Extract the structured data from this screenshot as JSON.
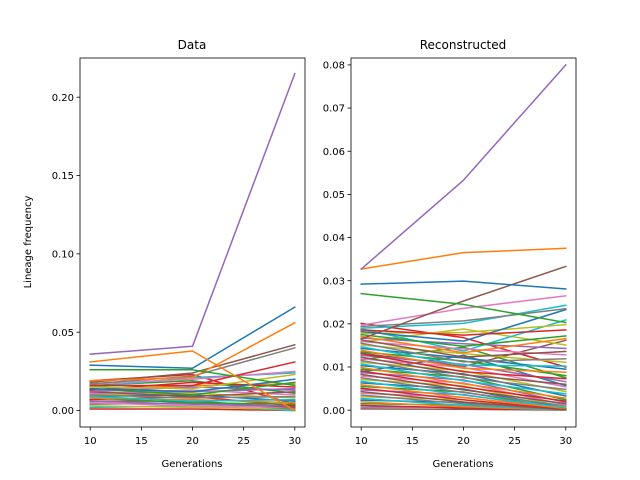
{
  "figure": {
    "ylabel": "Lineage frequency"
  },
  "chart_data": [
    {
      "type": "line",
      "title": "Data",
      "xlabel": "Generations",
      "ylabel": "Lineage frequency",
      "x": [
        10,
        20,
        30
      ],
      "xlim": [
        9,
        31
      ],
      "ylim": [
        -0.0105,
        0.225
      ],
      "xticks": [
        10,
        15,
        20,
        25,
        30
      ],
      "xtick_labels": [
        "10",
        "15",
        "20",
        "25",
        "30"
      ],
      "yticks": [
        0,
        0.05,
        0.1,
        0.15,
        0.2
      ],
      "ytick_labels": [
        "0.00",
        "0.05",
        "0.10",
        "0.15",
        "0.20"
      ],
      "grid": false,
      "series": [
        {
          "values": [
            0.036,
            0.041,
            0.215
          ],
          "color": "#9467bd"
        },
        {
          "values": [
            0.031,
            0.038,
            0.0
          ],
          "color": "#ff7f0e"
        },
        {
          "values": [
            0.029,
            0.027,
            0.066
          ],
          "color": "#1f77b4"
        },
        {
          "values": [
            0.026,
            0.026,
            0.016
          ],
          "color": "#2ca02c"
        },
        {
          "values": [
            0.019,
            0.021,
            0.056
          ],
          "color": "#ff7f0e"
        },
        {
          "values": [
            0.018,
            0.024,
            0.042
          ],
          "color": "#8c564b"
        },
        {
          "values": [
            0.017,
            0.022,
            0.04
          ],
          "color": "#7f7f7f"
        },
        {
          "values": [
            0.016,
            0.016,
            0.031
          ],
          "color": "#d62728"
        },
        {
          "values": [
            0.017,
            0.02,
            0.025
          ],
          "color": "#e377c2"
        },
        {
          "values": [
            0.015,
            0.014,
            0.023
          ],
          "color": "#bcbd22"
        },
        {
          "values": [
            0.015,
            0.021,
            0.024
          ],
          "color": "#17becf"
        },
        {
          "values": [
            0.014,
            0.012,
            0.02
          ],
          "color": "#1f77b4"
        },
        {
          "values": [
            0.014,
            0.01,
            0.018
          ],
          "color": "#2ca02c"
        },
        {
          "values": [
            0.013,
            0.018,
            0.015
          ],
          "color": "#d62728"
        },
        {
          "values": [
            0.012,
            0.015,
            0.013
          ],
          "color": "#9467bd"
        },
        {
          "values": [
            0.012,
            0.009,
            0.012
          ],
          "color": "#8c564b"
        },
        {
          "values": [
            0.011,
            0.013,
            0.01
          ],
          "color": "#e377c2"
        },
        {
          "values": [
            0.01,
            0.008,
            0.009
          ],
          "color": "#7f7f7f"
        },
        {
          "values": [
            0.01,
            0.011,
            0.008
          ],
          "color": "#bcbd22"
        },
        {
          "values": [
            0.009,
            0.006,
            0.007
          ],
          "color": "#17becf"
        },
        {
          "values": [
            0.009,
            0.01,
            0.006
          ],
          "color": "#1f77b4"
        },
        {
          "values": [
            0.008,
            0.007,
            0.005
          ],
          "color": "#ff7f0e"
        },
        {
          "values": [
            0.008,
            0.005,
            0.004
          ],
          "color": "#2ca02c"
        },
        {
          "values": [
            0.007,
            0.009,
            0.003
          ],
          "color": "#d62728"
        },
        {
          "values": [
            0.006,
            0.004,
            0.003
          ],
          "color": "#9467bd"
        },
        {
          "values": [
            0.006,
            0.006,
            0.002
          ],
          "color": "#8c564b"
        },
        {
          "values": [
            0.005,
            0.003,
            0.002
          ],
          "color": "#e377c2"
        },
        {
          "values": [
            0.004,
            0.005,
            0.001
          ],
          "color": "#7f7f7f"
        },
        {
          "values": [
            0.003,
            0.002,
            0.001
          ],
          "color": "#bcbd22"
        },
        {
          "values": [
            0.002,
            0.003,
            0.0
          ],
          "color": "#17becf"
        },
        {
          "values": [
            0.001,
            0.001,
            0.0
          ],
          "color": "#d62728"
        },
        {
          "values": [
            0.016,
            0.019,
            0.011
          ],
          "color": "#2ca02c"
        },
        {
          "values": [
            0.013,
            0.016,
            0.017
          ],
          "color": "#ff7f0e"
        },
        {
          "values": [
            0.011,
            0.012,
            0.014
          ],
          "color": "#9467bd"
        },
        {
          "values": [
            0.019,
            0.023,
            0.004
          ],
          "color": "#d62728"
        }
      ]
    },
    {
      "type": "line",
      "title": "Reconstructed",
      "xlabel": "Generations",
      "ylabel": "",
      "x": [
        10,
        20,
        30
      ],
      "xlim": [
        9,
        31
      ],
      "ylim": [
        -0.0039,
        0.0816
      ],
      "xticks": [
        10,
        15,
        20,
        25,
        30
      ],
      "xtick_labels": [
        "10",
        "15",
        "20",
        "25",
        "30"
      ],
      "yticks": [
        0,
        0.01,
        0.02,
        0.03,
        0.04,
        0.05,
        0.06,
        0.07,
        0.08
      ],
      "ytick_labels": [
        "0.00",
        "0.01",
        "0.02",
        "0.03",
        "0.04",
        "0.05",
        "0.06",
        "0.07",
        "0.08"
      ],
      "grid": false,
      "series": [
        {
          "values": [
            0.0327,
            0.0533,
            0.08
          ],
          "color": "#9467bd"
        },
        {
          "values": [
            0.0327,
            0.0365,
            0.0375
          ],
          "color": "#ff7f0e"
        },
        {
          "values": [
            0.0292,
            0.0299,
            0.0281
          ],
          "color": "#1f77b4"
        },
        {
          "values": [
            0.027,
            0.0245,
            0.0203
          ],
          "color": "#2ca02c"
        },
        {
          "values": [
            0.0165,
            0.0253,
            0.0333
          ],
          "color": "#8c564b"
        },
        {
          "values": [
            0.0197,
            0.0236,
            0.0265
          ],
          "color": "#e377c2"
        },
        {
          "values": [
            0.0194,
            0.0207,
            0.0235
          ],
          "color": "#7f7f7f"
        },
        {
          "values": [
            0.019,
            0.0201,
            0.0243
          ],
          "color": "#17becf"
        },
        {
          "values": [
            0.0186,
            0.0174,
            0.0186
          ],
          "color": "#d62728"
        },
        {
          "values": [
            0.0182,
            0.016,
            0.0233
          ],
          "color": "#1f77b4"
        },
        {
          "values": [
            0.0178,
            0.018,
            0.0198
          ],
          "color": "#bcbd22"
        },
        {
          "values": [
            0.0175,
            0.0148,
            0.0172
          ],
          "color": "#2ca02c"
        },
        {
          "values": [
            0.0171,
            0.0133,
            0.0166
          ],
          "color": "#ff7f0e"
        },
        {
          "values": [
            0.0167,
            0.0154,
            0.0143
          ],
          "color": "#9467bd"
        },
        {
          "values": [
            0.0163,
            0.0123,
            0.0136
          ],
          "color": "#8c564b"
        },
        {
          "values": [
            0.0159,
            0.0142,
            0.0128
          ],
          "color": "#e377c2"
        },
        {
          "values": [
            0.0155,
            0.0112,
            0.0119
          ],
          "color": "#7f7f7f"
        },
        {
          "values": [
            0.0151,
            0.0131,
            0.0111
          ],
          "color": "#bcbd22"
        },
        {
          "values": [
            0.0147,
            0.0104,
            0.0102
          ],
          "color": "#17becf"
        },
        {
          "values": [
            0.0143,
            0.0121,
            0.0095
          ],
          "color": "#1f77b4"
        },
        {
          "values": [
            0.0139,
            0.0097,
            0.0088
          ],
          "color": "#ff7f0e"
        },
        {
          "values": [
            0.0135,
            0.0114,
            0.008
          ],
          "color": "#2ca02c"
        },
        {
          "values": [
            0.0131,
            0.0089,
            0.0073
          ],
          "color": "#d62728"
        },
        {
          "values": [
            0.0127,
            0.0106,
            0.0066
          ],
          "color": "#9467bd"
        },
        {
          "values": [
            0.0123,
            0.0082,
            0.006
          ],
          "color": "#8c564b"
        },
        {
          "values": [
            0.0119,
            0.0099,
            0.0054
          ],
          "color": "#e377c2"
        },
        {
          "values": [
            0.0115,
            0.0075,
            0.0048
          ],
          "color": "#7f7f7f"
        },
        {
          "values": [
            0.0111,
            0.0091,
            0.0043
          ],
          "color": "#bcbd22"
        },
        {
          "values": [
            0.0107,
            0.0068,
            0.0038
          ],
          "color": "#17becf"
        },
        {
          "values": [
            0.0103,
            0.0084,
            0.0033
          ],
          "color": "#1f77b4"
        },
        {
          "values": [
            0.0099,
            0.0061,
            0.0028
          ],
          "color": "#ff7f0e"
        },
        {
          "values": [
            0.0095,
            0.0077,
            0.0024
          ],
          "color": "#2ca02c"
        },
        {
          "values": [
            0.0091,
            0.0054,
            0.0021
          ],
          "color": "#d62728"
        },
        {
          "values": [
            0.0087,
            0.007,
            0.0018
          ],
          "color": "#9467bd"
        },
        {
          "values": [
            0.0083,
            0.0047,
            0.0015
          ],
          "color": "#8c564b"
        },
        {
          "values": [
            0.0079,
            0.0063,
            0.0012
          ],
          "color": "#e377c2"
        },
        {
          "values": [
            0.0075,
            0.0041,
            0.001
          ],
          "color": "#7f7f7f"
        },
        {
          "values": [
            0.0071,
            0.0056,
            0.0008
          ],
          "color": "#bcbd22"
        },
        {
          "values": [
            0.0067,
            0.0035,
            0.0006
          ],
          "color": "#17becf"
        },
        {
          "values": [
            0.0063,
            0.0049,
            0.0005
          ],
          "color": "#1f77b4"
        },
        {
          "values": [
            0.0059,
            0.0029,
            0.0004
          ],
          "color": "#ff7f0e"
        },
        {
          "values": [
            0.0055,
            0.0042,
            0.0003
          ],
          "color": "#2ca02c"
        },
        {
          "values": [
            0.0051,
            0.0024,
            0.0002
          ],
          "color": "#d62728"
        },
        {
          "values": [
            0.0047,
            0.0036,
            0.0002
          ],
          "color": "#9467bd"
        },
        {
          "values": [
            0.0043,
            0.0019,
            0.0001
          ],
          "color": "#8c564b"
        },
        {
          "values": [
            0.0039,
            0.003,
            0.0001
          ],
          "color": "#e377c2"
        },
        {
          "values": [
            0.0035,
            0.0015,
            0.0001
          ],
          "color": "#7f7f7f"
        },
        {
          "values": [
            0.0031,
            0.0024,
            0.0
          ],
          "color": "#bcbd22"
        },
        {
          "values": [
            0.0027,
            0.0011,
            0.0
          ],
          "color": "#17becf"
        },
        {
          "values": [
            0.0023,
            0.0018,
            0.0
          ],
          "color": "#1f77b4"
        },
        {
          "values": [
            0.0019,
            0.0008,
            0.0
          ],
          "color": "#ff7f0e"
        },
        {
          "values": [
            0.0015,
            0.0012,
            0.0
          ],
          "color": "#2ca02c"
        },
        {
          "values": [
            0.0011,
            0.0005,
            0.0
          ],
          "color": "#d62728"
        },
        {
          "values": [
            0.0007,
            0.0007,
            0.0
          ],
          "color": "#9467bd"
        },
        {
          "values": [
            0.0003,
            0.0002,
            0.0
          ],
          "color": "#8c564b"
        },
        {
          "values": [
            0.0201,
            0.0168,
            0.01
          ],
          "color": "#d62728"
        },
        {
          "values": [
            0.0188,
            0.0137,
            0.0209
          ],
          "color": "#17becf"
        },
        {
          "values": [
            0.0158,
            0.0188,
            0.0151
          ],
          "color": "#bcbd22"
        },
        {
          "values": [
            0.0132,
            0.0101,
            0.0162
          ],
          "color": "#8c564b"
        },
        {
          "values": [
            0.0117,
            0.0146,
            0.0075
          ],
          "color": "#2ca02c"
        },
        {
          "values": [
            0.0089,
            0.0127,
            0.0057
          ],
          "color": "#1f77b4"
        }
      ]
    }
  ]
}
